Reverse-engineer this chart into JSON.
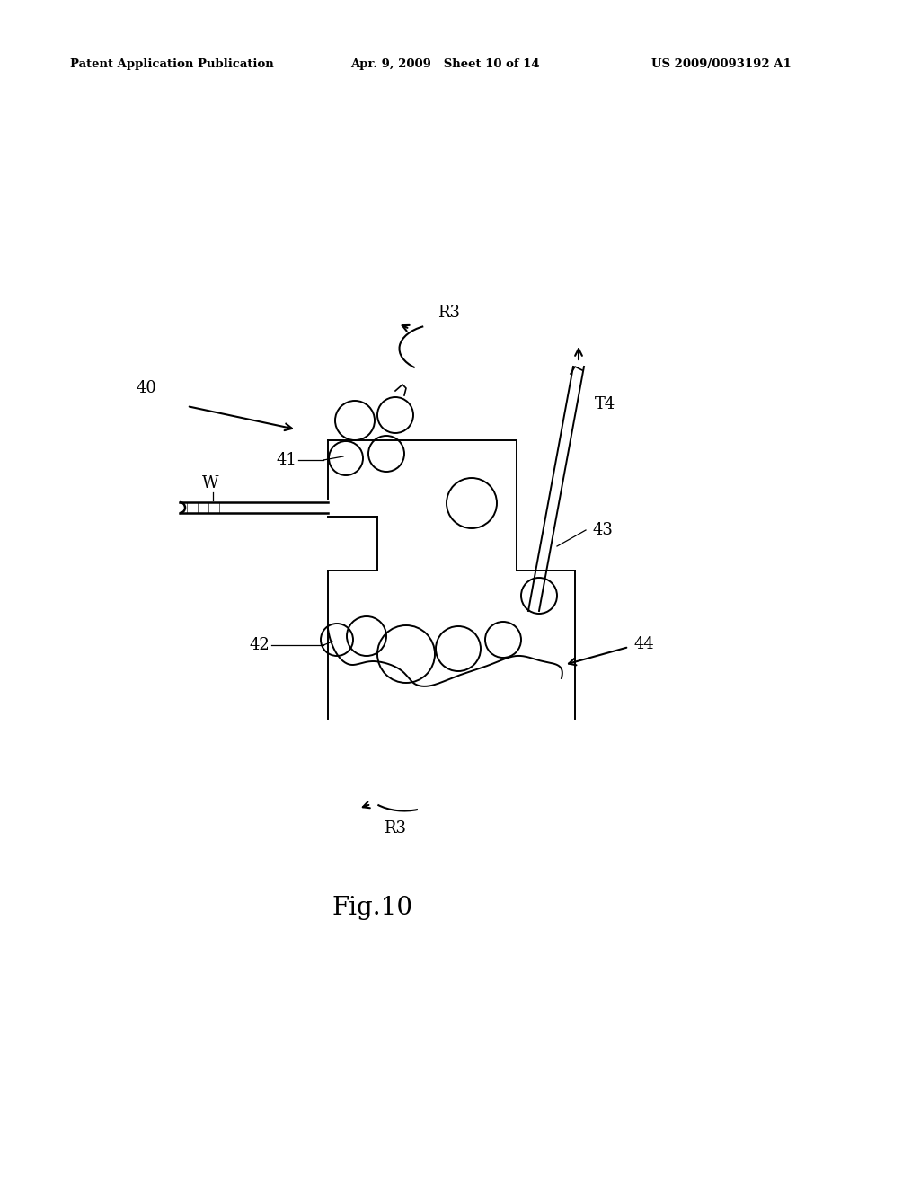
{
  "bg_color": "#ffffff",
  "header_left": "Patent Application Publication",
  "header_mid": "Apr. 9, 2009   Sheet 10 of 14",
  "header_right": "US 2009/0093192 A1",
  "fig_label": "Fig.10",
  "label_40": "40",
  "label_41": "41",
  "label_42": "42",
  "label_43": "43",
  "label_44": "44",
  "label_W": "W",
  "label_R3_top": "R3",
  "label_R3_bot": "R3",
  "label_T4": "T4",
  "lc": "#000000",
  "lw": 1.4
}
